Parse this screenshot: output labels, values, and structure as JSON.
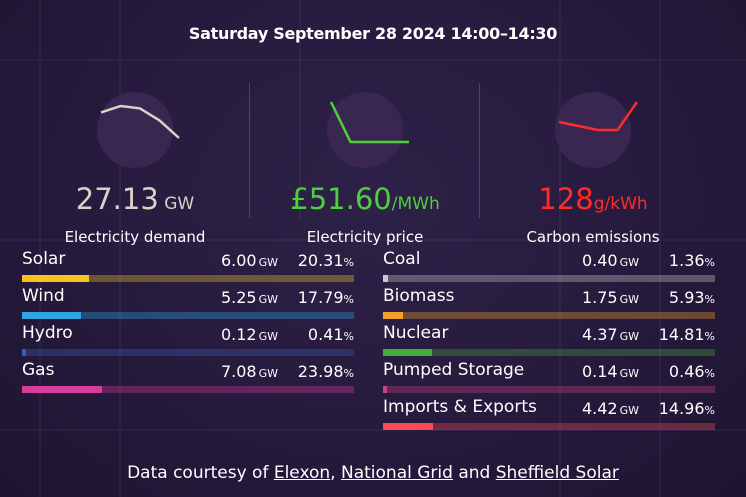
{
  "title": "Saturday September 28 2024 14:00–14:30",
  "kpis": {
    "demand": {
      "value": "27.13",
      "unit": " GW",
      "label": "Electricity demand",
      "color": "#d9d2c6",
      "sparkline": [
        0.72,
        0.8,
        0.77,
        0.62,
        0.4
      ]
    },
    "price": {
      "value": "£51.60",
      "unit": "/MWh",
      "label": "Electricity price",
      "color": "#4cd13a",
      "sparkline": [
        0.85,
        0.35,
        0.35,
        0.35,
        0.35
      ]
    },
    "carbon": {
      "value": "128",
      "unit": "g/kWh",
      "label": "Carbon emissions",
      "color": "#ff2b2b",
      "sparkline": [
        0.6,
        0.55,
        0.5,
        0.5,
        0.85
      ]
    }
  },
  "sources_left": [
    {
      "name": "Solar",
      "amount": "6.00",
      "unit": "GW",
      "pct": "20.31",
      "fraction": 0.2031,
      "color": "#f6c21c"
    },
    {
      "name": "Wind",
      "amount": "5.25",
      "unit": "GW",
      "pct": "17.79",
      "fraction": 0.1779,
      "color": "#2ea6e6"
    },
    {
      "name": "Hydro",
      "amount": "0.12",
      "unit": "GW",
      "pct": "0.41",
      "fraction": 0.0041,
      "color": "#3b5bb5"
    },
    {
      "name": "Gas",
      "amount": "7.08",
      "unit": "GW",
      "pct": "23.98",
      "fraction": 0.2398,
      "color": "#d93d9a"
    }
  ],
  "sources_right": [
    {
      "name": "Coal",
      "amount": "0.40",
      "unit": "GW",
      "pct": "1.36",
      "fraction": 0.0136,
      "color": "#c9c9c9"
    },
    {
      "name": "Biomass",
      "amount": "1.75",
      "unit": "GW",
      "pct": "5.93",
      "fraction": 0.0593,
      "color": "#f2a22b"
    },
    {
      "name": "Nuclear",
      "amount": "4.37",
      "unit": "GW",
      "pct": "14.81",
      "fraction": 0.1481,
      "color": "#43ad3a"
    },
    {
      "name": "Pumped Storage",
      "amount": "0.14",
      "unit": "GW",
      "pct": "0.46",
      "fraction": 0.0046,
      "color": "#c9447e"
    },
    {
      "name": "Imports & Exports",
      "amount": "4.42",
      "unit": "GW",
      "pct": "14.96",
      "fraction": 0.1496,
      "color": "#ff4757"
    }
  ],
  "percent_symbol": "%",
  "footer": {
    "prefix": "Data courtesy of ",
    "link1": "Elexon",
    "sep1": ", ",
    "link2": "National Grid",
    "sep2": " and ",
    "link3": "Sheffield Solar"
  }
}
